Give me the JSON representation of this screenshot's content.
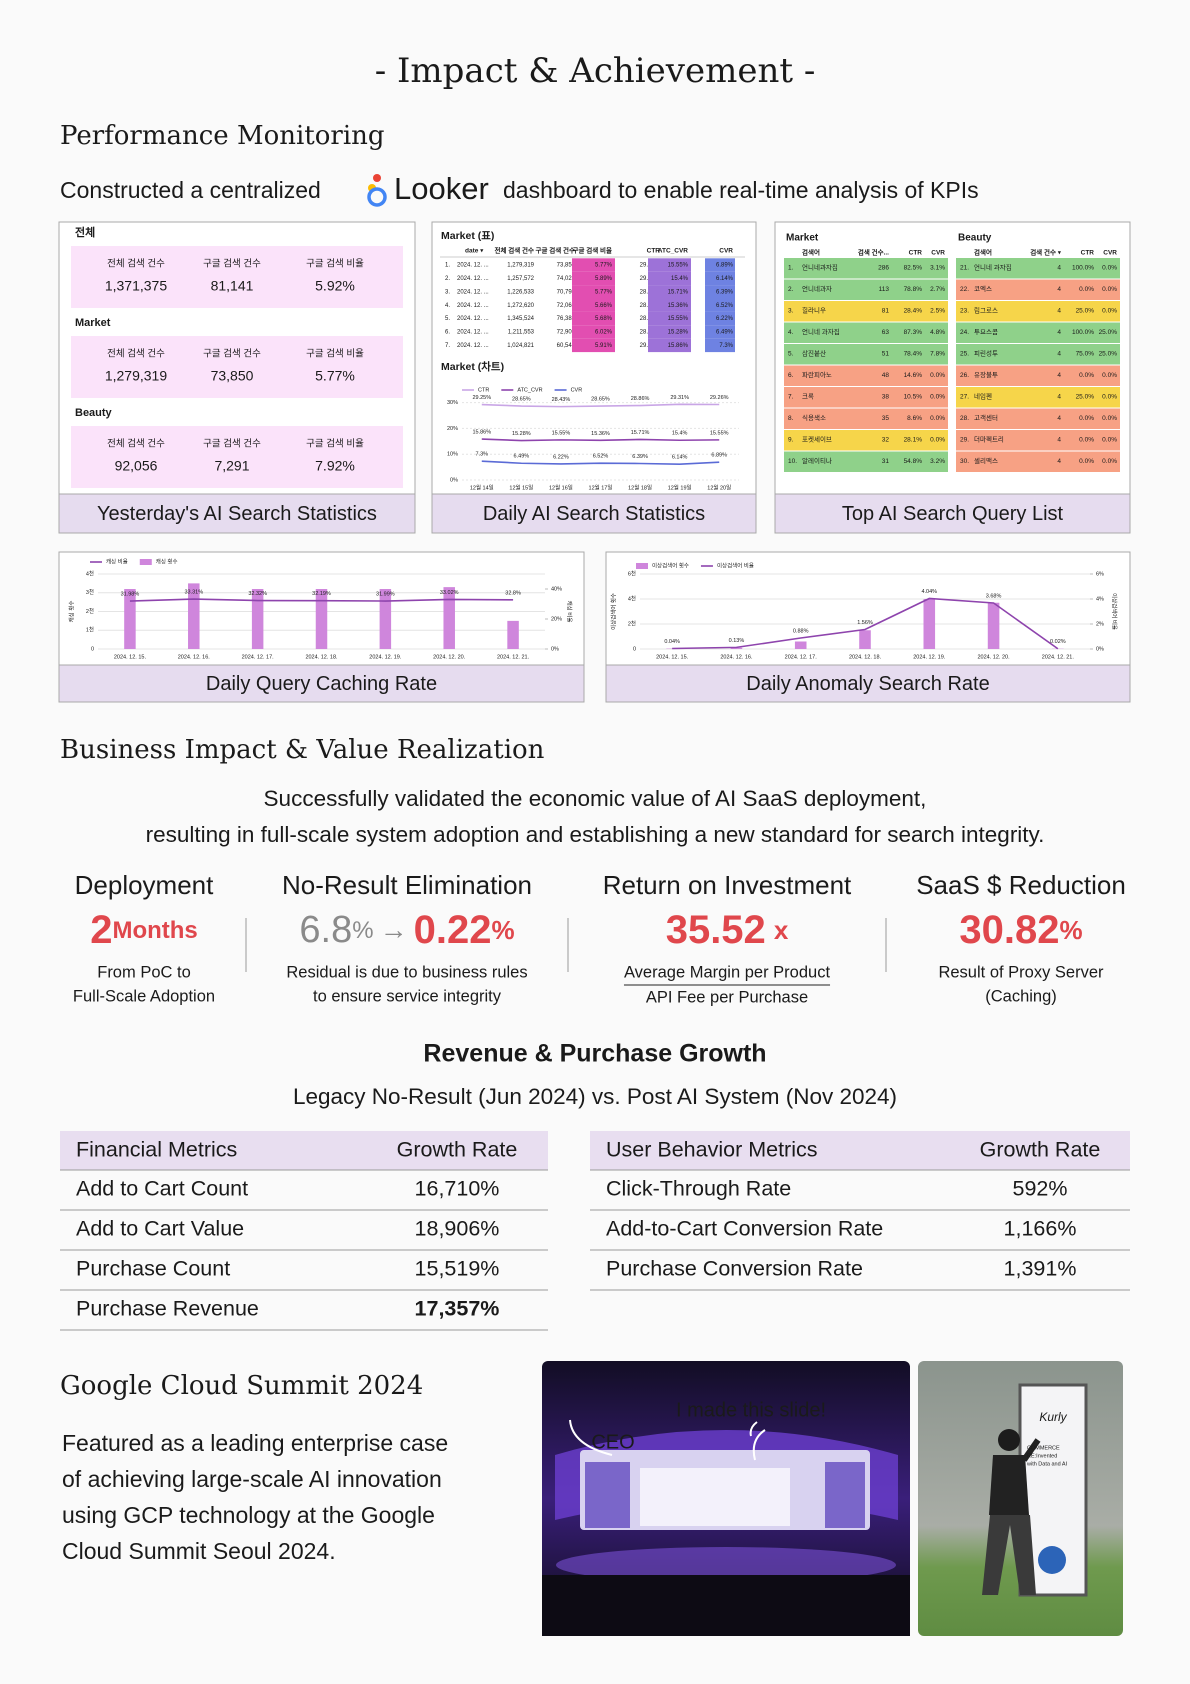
{
  "header": {
    "title": "- Impact & Achievement -"
  },
  "monitoring": {
    "heading": "Performance Monitoring",
    "intro": {
      "before": "Constructed a centralized",
      "logo": "Looker",
      "after": "dashboard to enable real-time analysis of KPIs"
    },
    "yesterday": {
      "caption": "Yesterday's AI Search Statistics",
      "groups": [
        {
          "label": "전체",
          "metrics": [
            {
              "label": "전체 검색 건수",
              "value": "1,371,375"
            },
            {
              "label": "구글 검색 건수",
              "value": "81,141"
            },
            {
              "label": "구글 검색 비율",
              "value": "5.92%"
            }
          ]
        },
        {
          "label": "Market",
          "metrics": [
            {
              "label": "전체 검색 건수",
              "value": "1,279,319"
            },
            {
              "label": "구글 검색 건수",
              "value": "73,850"
            },
            {
              "label": "구글 검색 비율",
              "value": "5.77%"
            }
          ]
        },
        {
          "label": "Beauty",
          "metrics": [
            {
              "label": "전체 검색 건수",
              "value": "92,056"
            },
            {
              "label": "구글 검색 건수",
              "value": "7,291"
            },
            {
              "label": "구글 검색 비율",
              "value": "7.92%"
            }
          ]
        }
      ]
    },
    "daily": {
      "caption": "Daily AI Search Statistics",
      "table": {
        "title": "Market (표)",
        "columns": [
          "date ▾",
          "전체 검색 건수",
          "구글 검색 건수",
          "구글 검색 비율",
          "CTR",
          "ATC_CVR",
          "CVR"
        ],
        "rows": [
          [
            "1.",
            "2024. 12. ...",
            "1,279,319",
            "73,850",
            "5.77%",
            "29.26%",
            "15.55%",
            "6.89%"
          ],
          [
            "2.",
            "2024. 12. ...",
            "1,257,572",
            "74,023",
            "5.89%",
            "29.31%",
            "15.4%",
            "6.14%"
          ],
          [
            "3.",
            "2024. 12. ...",
            "1,226,533",
            "70,794",
            "5.77%",
            "28.86%",
            "15.71%",
            "6.39%"
          ],
          [
            "4.",
            "2024. 12. ...",
            "1,272,620",
            "72,061",
            "5.66%",
            "28.65%",
            "15.36%",
            "6.52%"
          ],
          [
            "5.",
            "2024. 12. ...",
            "1,345,524",
            "76,382",
            "5.68%",
            "28.43%",
            "15.55%",
            "6.22%"
          ],
          [
            "6.",
            "2024. 12. ...",
            "1,211,553",
            "72,909",
            "6.02%",
            "28.65%",
            "15.28%",
            "6.49%"
          ],
          [
            "7.",
            "2024. 12. ...",
            "1,024,821",
            "60,548",
            "5.91%",
            "29.25%",
            "15.86%",
            "7.3%"
          ]
        ]
      },
      "chart": {
        "type": "line",
        "title": "Market (차트)",
        "categories": [
          "12월 14일",
          "12월 15일",
          "12월 16일",
          "12월 17일",
          "12월 18일",
          "12월 19일",
          "12월 20일"
        ],
        "ylim": [
          0,
          31
        ],
        "yticks": [
          {
            "value": 0,
            "label": "0%"
          },
          {
            "value": 10,
            "label": "10%"
          },
          {
            "value": 20,
            "label": "20%"
          },
          {
            "value": 30,
            "label": "30%"
          }
        ],
        "series": [
          {
            "name": "CTR",
            "type": "line",
            "color": "#c9a6e6",
            "values": [
              29.25,
              28.65,
              28.43,
              28.65,
              28.86,
              29.31,
              29.26
            ],
            "value_labels": [
              "29.25%",
              "28.65%",
              "28.43%",
              "28.65%",
              "28.86%",
              "29.31%",
              "29.26%"
            ]
          },
          {
            "name": "ATC_CVR",
            "type": "line",
            "color": "#8e44ad",
            "values": [
              15.86,
              15.28,
              15.55,
              15.36,
              15.71,
              15.4,
              15.55
            ],
            "value_labels": [
              "15.86%",
              "15.28%",
              "15.55%",
              "15.36%",
              "15.71%",
              "15.4%",
              "15.55%"
            ]
          },
          {
            "name": "CVR",
            "type": "line",
            "color": "#5b6bd6",
            "values": [
              7.3,
              6.49,
              6.22,
              6.52,
              6.39,
              6.14,
              6.89
            ],
            "value_labels": [
              "7.3%",
              "6.49%",
              "6.22%",
              "6.52%",
              "6.39%",
              "6.14%",
              "6.89%"
            ]
          }
        ]
      }
    },
    "top_queries": {
      "caption": "Top AI Search Query List",
      "tables": [
        {
          "title": "Market",
          "columns": [
            "검색어",
            "검색 건수...",
            "CTR",
            "CVR"
          ],
          "rows": [
            {
              "cells": [
                "1.",
                "언니네과자집",
                "286",
                "82.5%",
                "3.1%"
              ],
              "color": "#8fd18a"
            },
            {
              "cells": [
                "2.",
                "언니네과자",
                "113",
                "78.8%",
                "2.7%"
              ],
              "color": "#8fd18a"
            },
            {
              "cells": [
                "3.",
                "힐라니우",
                "81",
                "28.4%",
                "2.5%"
              ],
              "color": "#f6d54a"
            },
            {
              "cells": [
                "4.",
                "언니네 과자집",
                "63",
                "87.3%",
                "4.8%"
              ],
              "color": "#8fd18a"
            },
            {
              "cells": [
                "5.",
                "삼진붙산",
                "51",
                "78.4%",
                "7.8%"
              ],
              "color": "#8fd18a"
            },
            {
              "cells": [
                "6.",
                "파란피아노",
                "48",
                "14.6%",
                "0.0%"
              ],
              "color": "#f7a184"
            },
            {
              "cells": [
                "7.",
                "크록",
                "38",
                "10.5%",
                "0.0%"
              ],
              "color": "#f7a184"
            },
            {
              "cells": [
                "8.",
                "식용색소",
                "35",
                "8.6%",
                "0.0%"
              ],
              "color": "#f7a184"
            },
            {
              "cells": [
                "9.",
                "포켓세이브",
                "32",
                "28.1%",
                "0.0%"
              ],
              "color": "#f6d54a"
            },
            {
              "cells": [
                "10.",
                "알레이티나",
                "31",
                "54.8%",
                "3.2%"
              ],
              "color": "#8fd18a"
            }
          ]
        },
        {
          "title": "Beauty",
          "columns": [
            "검색어",
            "검색 건수 ▾",
            "CTR",
            "CVR"
          ],
          "rows": [
            {
              "cells": [
                "21.",
                "언니네 과자집",
                "4",
                "100.0%",
                "0.0%"
              ],
              "color": "#8fd18a"
            },
            {
              "cells": [
                "22.",
                "코엑스",
                "4",
                "0.0%",
                "0.0%"
              ],
              "color": "#f7a184"
            },
            {
              "cells": [
                "23.",
                "립그로스",
                "4",
                "25.0%",
                "0.0%"
              ],
              "color": "#f6d54a"
            },
            {
              "cells": [
                "24.",
                "투요스콤",
                "4",
                "100.0%",
                "25.0%"
              ],
              "color": "#8fd18a"
            },
            {
              "cells": [
                "25.",
                "피린성투",
                "4",
                "75.0%",
                "25.0%"
              ],
              "color": "#8fd18a"
            },
            {
              "cells": [
                "26.",
                "유장불투",
                "4",
                "0.0%",
                "0.0%"
              ],
              "color": "#f7a184"
            },
            {
              "cells": [
                "27.",
                "네임펜",
                "4",
                "25.0%",
                "0.0%"
              ],
              "color": "#f6d54a"
            },
            {
              "cells": [
                "28.",
                "고객센터",
                "4",
                "0.0%",
                "0.0%"
              ],
              "color": "#f7a184"
            },
            {
              "cells": [
                "29.",
                "더마펙트리",
                "4",
                "0.0%",
                "0.0%"
              ],
              "color": "#f7a184"
            },
            {
              "cells": [
                "30.",
                "셀리맥스",
                "4",
                "0.0%",
                "0.0%"
              ],
              "color": "#f7a184"
            }
          ]
        }
      ]
    },
    "caching": {
      "caption": "Daily Query Caching Rate",
      "chart": {
        "type": "combo",
        "categories": [
          "2024. 12. 15.",
          "2024. 12. 16.",
          "2024. 12. 17.",
          "2024. 12. 18.",
          "2024. 12. 19.",
          "2024. 12. 20.",
          "2024. 12. 21."
        ],
        "ylabel": "캐싱 횟수",
        "y2label": "캐싱 비율",
        "ylim": [
          0,
          4
        ],
        "yticks": [
          0,
          {
            "value": 1,
            "label": "1천"
          },
          {
            "value": 2,
            "label": "2천"
          },
          {
            "value": 3,
            "label": "3천"
          },
          {
            "value": 4,
            "label": "4천"
          }
        ],
        "y2lim": [
          0,
          50
        ],
        "y2ticks": [
          {
            "value": 0,
            "label": "0%"
          },
          {
            "value": 20,
            "label": "20%"
          },
          {
            "value": 40,
            "label": "40%"
          }
        ],
        "series": [
          {
            "name": "캐싱 비율",
            "type": "line",
            "axis": "y2",
            "color": "#8e44ad",
            "values": [
              31.98,
              33.31,
              32.32,
              32.19,
              31.99,
              33.02,
              32.8
            ],
            "value_labels": [
              "31.98%",
              "33.31%",
              "32.32%",
              "32.19%",
              "31.99%",
              "33.02%",
              "32.8%"
            ]
          },
          {
            "name": "캐싱 횟수",
            "type": "bar",
            "color": "#cf86dc",
            "values": [
              3.2,
              3.5,
              3.2,
              3.2,
              3.2,
              3.3,
              1.5
            ]
          }
        ]
      }
    },
    "anomaly": {
      "caption": "Daily Anomaly Search Rate",
      "chart": {
        "type": "combo",
        "categories": [
          "2024. 12. 15.",
          "2024. 12. 16.",
          "2024. 12. 17.",
          "2024. 12. 18.",
          "2024. 12. 19.",
          "2024. 12. 20.",
          "2024. 12. 21."
        ],
        "ylabel": "이상검색어 횟수",
        "y2label": "이상검색어 비율",
        "ylim": [
          0,
          6
        ],
        "yticks": [
          0,
          {
            "value": 2,
            "label": "2천"
          },
          {
            "value": 4,
            "label": "4천"
          },
          {
            "value": 6,
            "label": "6천"
          }
        ],
        "y2lim": [
          0,
          6
        ],
        "y2ticks": [
          {
            "value": 0,
            "label": "0%"
          },
          {
            "value": 2,
            "label": "2%"
          },
          {
            "value": 4,
            "label": "4%"
          },
          {
            "value": 6,
            "label": "6%"
          }
        ],
        "series": [
          {
            "name": "이상검색어 횟수",
            "type": "bar",
            "color": "#cf86dc",
            "values": [
              0.03,
              0.1,
              0.6,
              1.5,
              4.0,
              3.7,
              0.02
            ]
          },
          {
            "name": "이상검색어 비율",
            "type": "line",
            "axis": "y2",
            "color": "#8e44ad",
            "values": [
              0.04,
              0.13,
              0.88,
              1.56,
              4.04,
              3.68,
              0.02
            ],
            "value_labels": [
              "0.04%",
              "0.13%",
              "0.88%",
              "1.56%",
              "4.04%",
              "3.68%",
              "0.02%"
            ]
          }
        ]
      }
    }
  },
  "business": {
    "heading": "Business Impact & Value Realization",
    "lines": [
      "Successfully validated the economic value of AI SaaS deployment,",
      "resulting in full-scale system adoption and establishing a new standard for search integrity."
    ],
    "kpis": [
      {
        "title": "Deployment",
        "value": "2",
        "unit": "Months",
        "notes": [
          "From PoC to",
          "Full-Scale Adoption"
        ]
      },
      {
        "title": "No-Result Elimination",
        "from": "6.8",
        "from_unit": "%",
        "arrow": "→",
        "value": "0.22",
        "unit": "%",
        "notes": [
          "Residual is due to business rules",
          "to ensure service integrity"
        ]
      },
      {
        "title": "Return on Investment",
        "value": "35.52",
        "unit": "x",
        "fraction": {
          "numerator": "Average Margin per Product",
          "denominator": "API Fee per Purchase"
        }
      },
      {
        "title": "SaaS $ Reduction",
        "value": "30.82",
        "unit": "%",
        "notes": [
          "Result of Proxy Server",
          "(Caching)"
        ]
      }
    ]
  },
  "growth": {
    "title": "Revenue & Purchase Growth",
    "subtitle": "Legacy No-Result (Jun 2024) vs. Post AI System (Nov 2024)",
    "tables": [
      {
        "headers": [
          "Financial Metrics",
          "Growth Rate"
        ],
        "rows": [
          {
            "metric": "Add to Cart Count",
            "rate": "16,710%"
          },
          {
            "metric": "Add to Cart Value",
            "rate": "18,906%"
          },
          {
            "metric": "Purchase Count",
            "rate": "15,519%"
          },
          {
            "metric": "Purchase Revenue",
            "rate": "17,357%",
            "bold": true
          }
        ]
      },
      {
        "headers": [
          "User Behavior Metrics",
          "Growth Rate"
        ],
        "rows": [
          {
            "metric": "Click-Through Rate",
            "rate": "592%"
          },
          {
            "metric": "Add-to-Cart Conversion Rate",
            "rate": "1,166%"
          },
          {
            "metric": "Purchase Conversion Rate",
            "rate": "1,391%"
          }
        ]
      }
    ]
  },
  "summit": {
    "heading": "Google Cloud Summit 2024",
    "lines": [
      "Featured as a leading enterprise case",
      "of achieving large-scale AI innovation",
      "using GCP technology at the Google",
      "Cloud Summit Seoul 2024."
    ],
    "photo_notes": {
      "slide": "I made this slide!",
      "speaker": "CEO"
    },
    "banner": [
      "Kurly",
      "COMMERCE",
      "RE:Invented",
      "with Data and AI"
    ]
  }
}
